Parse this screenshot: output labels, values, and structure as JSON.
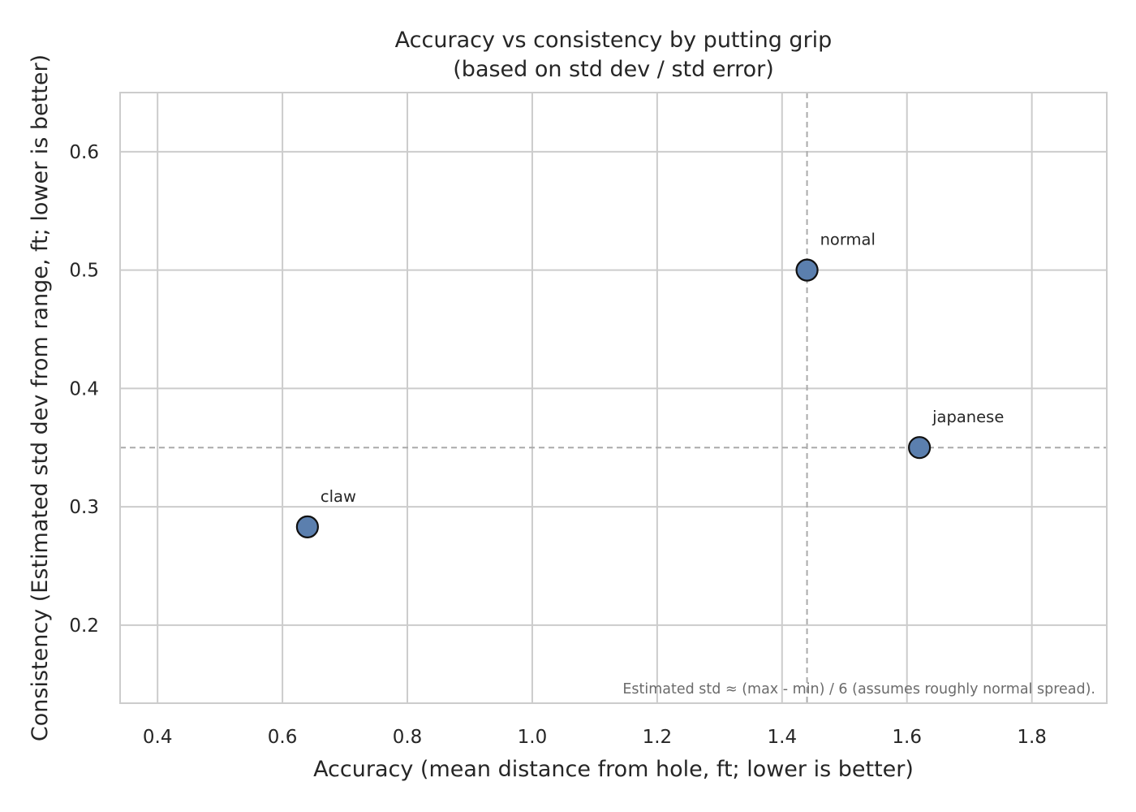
{
  "chart_data": {
    "type": "scatter",
    "title": "Accuracy vs consistency by putting grip",
    "subtitle": "(based on std dev / std error)",
    "xlabel": "Accuracy (mean distance from hole, ft; lower is better)",
    "ylabel": "Consistency (Estimated std dev from range, ft; lower is better)",
    "xlim": [
      0.34,
      1.92
    ],
    "ylim": [
      0.134,
      0.65
    ],
    "xticks": [
      "0.4",
      "0.6",
      "0.8",
      "1.0",
      "1.2",
      "1.4",
      "1.6",
      "1.8"
    ],
    "xtick_values": [
      0.4,
      0.6,
      0.8,
      1.0,
      1.2,
      1.4,
      1.6,
      1.8
    ],
    "yticks": [
      "0.2",
      "0.3",
      "0.4",
      "0.5",
      "0.6"
    ],
    "ytick_values": [
      0.2,
      0.3,
      0.4,
      0.5,
      0.6
    ],
    "grid": true,
    "points": [
      {
        "label": "claw",
        "x": 0.64,
        "y": 0.283
      },
      {
        "label": "normal",
        "x": 1.44,
        "y": 0.5
      },
      {
        "label": "japanese",
        "x": 1.62,
        "y": 0.35
      }
    ],
    "reference_lines": {
      "vertical_x": 1.44,
      "horizontal_y": 0.35
    },
    "annotation": "Estimated std ≈ (max - min) / 6 (assumes roughly normal spread).",
    "colors": {
      "point_fill": "#5b7fae",
      "point_edge": "#111111",
      "grid": "#cccccc",
      "reference_line": "#aaaaaa"
    }
  }
}
